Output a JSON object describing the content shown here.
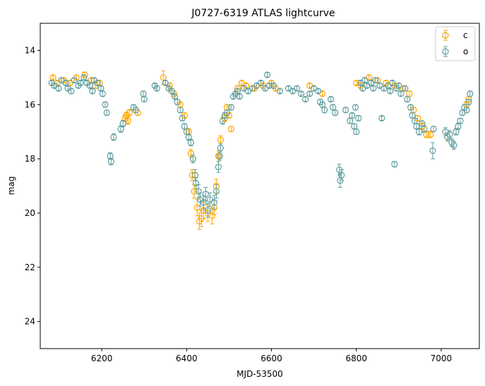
{
  "chart_data": {
    "type": "scatter",
    "title": "J0727-6319 ATLAS lightcurve",
    "xlabel": "MJD-53500",
    "ylabel": "mag",
    "xlim": [
      6055,
      7090
    ],
    "ylim": [
      25,
      13
    ],
    "y_inverted": true,
    "x_ticks": [
      6200,
      6400,
      6600,
      6800,
      7000
    ],
    "y_ticks": [
      14,
      16,
      18,
      20,
      22,
      24
    ],
    "grid": false,
    "legend_position": "top-right",
    "series": [
      {
        "name": "c",
        "color": "#FFA500",
        "marker": "open-circle",
        "points": [
          [
            6085,
            15.0,
            0.08
          ],
          [
            6095,
            15.2,
            0.08
          ],
          [
            6110,
            15.1,
            0.08
          ],
          [
            6125,
            15.2,
            0.1
          ],
          [
            6140,
            15.0,
            0.08
          ],
          [
            6160,
            14.9,
            0.1
          ],
          [
            6175,
            15.1,
            0.08
          ],
          [
            6185,
            15.3,
            0.1
          ],
          [
            6195,
            15.2,
            0.08
          ],
          [
            6255,
            16.5,
            0.12
          ],
          [
            6258,
            16.4,
            0.12
          ],
          [
            6262,
            16.6,
            0.12
          ],
          [
            6265,
            16.3,
            0.12
          ],
          [
            6285,
            16.3,
            0.1
          ],
          [
            6345,
            15.0,
            0.25
          ],
          [
            6360,
            15.3,
            0.1
          ],
          [
            6370,
            15.6,
            0.1
          ],
          [
            6385,
            16.0,
            0.1
          ],
          [
            6395,
            16.4,
            0.1
          ],
          [
            6405,
            17.0,
            0.12
          ],
          [
            6410,
            17.8,
            0.15
          ],
          [
            6413,
            18.6,
            0.2
          ],
          [
            6418,
            19.2,
            0.25
          ],
          [
            6425,
            19.8,
            0.3
          ],
          [
            6430,
            20.3,
            0.3
          ],
          [
            6435,
            20.2,
            0.3
          ],
          [
            6440,
            19.9,
            0.3
          ],
          [
            6450,
            20.0,
            0.3
          ],
          [
            6460,
            20.1,
            0.3
          ],
          [
            6465,
            19.8,
            0.25
          ],
          [
            6470,
            19.0,
            0.25
          ],
          [
            6475,
            17.9,
            0.2
          ],
          [
            6480,
            17.3,
            0.15
          ],
          [
            6490,
            16.5,
            0.12
          ],
          [
            6495,
            16.1,
            0.1
          ],
          [
            6500,
            16.4,
            0.1
          ],
          [
            6505,
            16.9,
            0.1
          ],
          [
            6520,
            15.4,
            0.1
          ],
          [
            6530,
            15.2,
            0.08
          ],
          [
            6540,
            15.3,
            0.08
          ],
          [
            6560,
            15.4,
            0.08
          ],
          [
            6580,
            15.3,
            0.08
          ],
          [
            6600,
            15.2,
            0.08
          ],
          [
            6610,
            15.4,
            0.08
          ],
          [
            6690,
            15.3,
            0.08
          ],
          [
            6720,
            15.6,
            0.08
          ],
          [
            6800,
            15.2,
            0.08
          ],
          [
            6810,
            15.3,
            0.08
          ],
          [
            6830,
            15.0,
            0.08
          ],
          [
            6850,
            15.1,
            0.08
          ],
          [
            6870,
            15.2,
            0.08
          ],
          [
            6890,
            15.3,
            0.08
          ],
          [
            6910,
            15.4,
            0.08
          ],
          [
            6925,
            15.6,
            0.1
          ],
          [
            6935,
            16.2,
            0.1
          ],
          [
            6945,
            16.5,
            0.1
          ],
          [
            6955,
            16.8,
            0.12
          ],
          [
            6965,
            17.1,
            0.12
          ],
          [
            6975,
            17.1,
            0.12
          ],
          [
            7060,
            16.0,
            0.1
          ],
          [
            7065,
            15.8,
            0.1
          ]
        ]
      },
      {
        "name": "o",
        "color": "#5F9EA0",
        "marker": "open-circle",
        "points": [
          [
            6082,
            15.2,
            0.08
          ],
          [
            6088,
            15.3,
            0.08
          ],
          [
            6098,
            15.4,
            0.08
          ],
          [
            6105,
            15.1,
            0.08
          ],
          [
            6115,
            15.2,
            0.08
          ],
          [
            6120,
            15.4,
            0.08
          ],
          [
            6128,
            15.5,
            0.1
          ],
          [
            6135,
            15.1,
            0.08
          ],
          [
            6145,
            15.3,
            0.08
          ],
          [
            6150,
            15.2,
            0.08
          ],
          [
            6158,
            15.0,
            0.08
          ],
          [
            6165,
            15.2,
            0.08
          ],
          [
            6172,
            15.3,
            0.08
          ],
          [
            6178,
            15.5,
            0.08
          ],
          [
            6182,
            15.1,
            0.08
          ],
          [
            6190,
            15.2,
            0.08
          ],
          [
            6198,
            15.4,
            0.08
          ],
          [
            6202,
            15.6,
            0.1
          ],
          [
            6208,
            16.0,
            0.1
          ],
          [
            6212,
            16.3,
            0.1
          ],
          [
            6220,
            17.9,
            0.12
          ],
          [
            6222,
            18.1,
            0.12
          ],
          [
            6228,
            17.2,
            0.12
          ],
          [
            6245,
            16.9,
            0.12
          ],
          [
            6250,
            16.7,
            0.12
          ],
          [
            6275,
            16.1,
            0.1
          ],
          [
            6280,
            16.2,
            0.1
          ],
          [
            6298,
            15.6,
            0.1
          ],
          [
            6300,
            15.8,
            0.1
          ],
          [
            6325,
            15.3,
            0.08
          ],
          [
            6330,
            15.4,
            0.08
          ],
          [
            6350,
            15.2,
            0.08
          ],
          [
            6358,
            15.4,
            0.08
          ],
          [
            6365,
            15.5,
            0.08
          ],
          [
            6372,
            15.7,
            0.08
          ],
          [
            6378,
            15.9,
            0.1
          ],
          [
            6385,
            16.2,
            0.1
          ],
          [
            6390,
            16.5,
            0.1
          ],
          [
            6395,
            16.8,
            0.1
          ],
          [
            6400,
            17.0,
            0.1
          ],
          [
            6405,
            17.2,
            0.12
          ],
          [
            6410,
            17.4,
            0.12
          ],
          [
            6415,
            18.0,
            0.15
          ],
          [
            6420,
            18.6,
            0.2
          ],
          [
            6422,
            18.9,
            0.2
          ],
          [
            6428,
            19.2,
            0.25
          ],
          [
            6432,
            19.5,
            0.25
          ],
          [
            6440,
            19.6,
            0.25
          ],
          [
            6445,
            19.3,
            0.25
          ],
          [
            6450,
            19.9,
            0.25
          ],
          [
            6455,
            19.5,
            0.25
          ],
          [
            6465,
            19.6,
            0.25
          ],
          [
            6470,
            19.2,
            0.25
          ],
          [
            6475,
            18.3,
            0.2
          ],
          [
            6478,
            17.9,
            0.15
          ],
          [
            6480,
            17.6,
            0.15
          ],
          [
            6485,
            16.6,
            0.12
          ],
          [
            6490,
            16.4,
            0.1
          ],
          [
            6495,
            16.3,
            0.1
          ],
          [
            6505,
            16.1,
            0.1
          ],
          [
            6510,
            15.7,
            0.08
          ],
          [
            6515,
            15.6,
            0.08
          ],
          [
            6520,
            15.5,
            0.08
          ],
          [
            6525,
            15.7,
            0.08
          ],
          [
            6535,
            15.4,
            0.08
          ],
          [
            6545,
            15.5,
            0.08
          ],
          [
            6555,
            15.4,
            0.08
          ],
          [
            6565,
            15.3,
            0.08
          ],
          [
            6575,
            15.2,
            0.08
          ],
          [
            6585,
            15.4,
            0.08
          ],
          [
            6590,
            14.9,
            0.08
          ],
          [
            6595,
            15.3,
            0.08
          ],
          [
            6605,
            15.3,
            0.08
          ],
          [
            6620,
            15.5,
            0.08
          ],
          [
            6640,
            15.4,
            0.08
          ],
          [
            6650,
            15.5,
            0.08
          ],
          [
            6660,
            15.4,
            0.08
          ],
          [
            6670,
            15.6,
            0.08
          ],
          [
            6680,
            15.8,
            0.08
          ],
          [
            6690,
            15.6,
            0.08
          ],
          [
            6700,
            15.4,
            0.08
          ],
          [
            6710,
            15.5,
            0.08
          ],
          [
            6715,
            15.9,
            0.1
          ],
          [
            6720,
            16.0,
            0.1
          ],
          [
            6725,
            16.2,
            0.1
          ],
          [
            6740,
            15.8,
            0.08
          ],
          [
            6745,
            16.1,
            0.1
          ],
          [
            6750,
            16.3,
            0.1
          ],
          [
            6760,
            18.4,
            0.2
          ],
          [
            6762,
            18.8,
            0.25
          ],
          [
            6765,
            18.6,
            0.2
          ],
          [
            6775,
            16.2,
            0.1
          ],
          [
            6785,
            16.6,
            0.1
          ],
          [
            6790,
            16.4,
            0.1
          ],
          [
            6795,
            16.8,
            0.1
          ],
          [
            6798,
            16.1,
            0.1
          ],
          [
            6800,
            17.0,
            0.1
          ],
          [
            6805,
            16.5,
            0.1
          ],
          [
            6810,
            15.2,
            0.08
          ],
          [
            6815,
            15.4,
            0.08
          ],
          [
            6820,
            15.1,
            0.08
          ],
          [
            6825,
            15.3,
            0.08
          ],
          [
            6835,
            15.2,
            0.08
          ],
          [
            6840,
            15.4,
            0.08
          ],
          [
            6845,
            15.1,
            0.08
          ],
          [
            6855,
            15.3,
            0.08
          ],
          [
            6860,
            16.5,
            0.08
          ],
          [
            6865,
            15.4,
            0.08
          ],
          [
            6875,
            15.3,
            0.08
          ],
          [
            6880,
            15.5,
            0.08
          ],
          [
            6885,
            15.2,
            0.08
          ],
          [
            6890,
            18.2,
            0.1
          ],
          [
            6895,
            15.4,
            0.08
          ],
          [
            6900,
            15.3,
            0.08
          ],
          [
            6905,
            15.6,
            0.08
          ],
          [
            6915,
            15.4,
            0.08
          ],
          [
            6920,
            15.8,
            0.1
          ],
          [
            6928,
            16.1,
            0.1
          ],
          [
            6932,
            16.4,
            0.1
          ],
          [
            6938,
            16.6,
            0.1
          ],
          [
            6942,
            16.8,
            0.1
          ],
          [
            6948,
            17.0,
            0.12
          ],
          [
            6955,
            16.7,
            0.1
          ],
          [
            6960,
            16.9,
            0.12
          ],
          [
            6980,
            17.7,
            0.3
          ],
          [
            6982,
            16.9,
            0.1
          ],
          [
            7010,
            17.0,
            0.15
          ],
          [
            7015,
            17.2,
            0.15
          ],
          [
            7020,
            17.1,
            0.15
          ],
          [
            7025,
            17.4,
            0.15
          ],
          [
            7030,
            17.5,
            0.15
          ],
          [
            7035,
            17.0,
            0.12
          ],
          [
            7040,
            16.8,
            0.12
          ],
          [
            7045,
            16.6,
            0.1
          ],
          [
            7050,
            16.3,
            0.1
          ],
          [
            7055,
            16.1,
            0.1
          ],
          [
            7060,
            16.2,
            0.1
          ],
          [
            7065,
            15.9,
            0.1
          ],
          [
            7068,
            15.6,
            0.1
          ]
        ]
      }
    ]
  }
}
